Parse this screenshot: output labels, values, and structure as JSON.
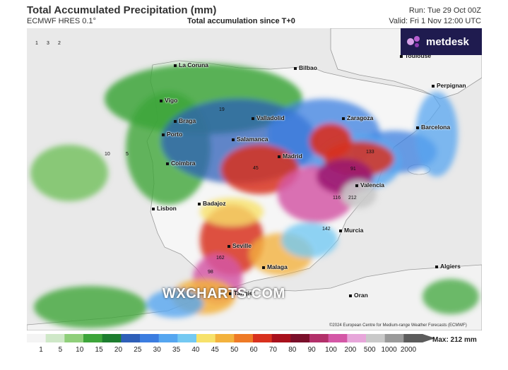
{
  "header": {
    "title": "Total Accumulated Precipitation (mm)",
    "model": "ECMWF HRES 0.1°",
    "subtitle": "Total accumulation since T+0",
    "run": "Run: Tue 29 Oct 00Z",
    "valid": "Valid: Fri 1 Nov 12:00 UTC"
  },
  "logo": {
    "text": "metdesk",
    "bg_color": "#1f1b4f"
  },
  "cities": [
    "La Coruna",
    "Bilbao",
    "Toulouse",
    "Vigo",
    "Perpignan",
    "Braga",
    "Valladolid",
    "Zaragoza",
    "Porto",
    "Barcelona",
    "Salamanca",
    "Madrid",
    "Coimbra",
    "Valencia",
    "Lisbon",
    "Badajoz",
    "Murcia",
    "Seville",
    "Malaga",
    "Algiers",
    "Tangier",
    "Oran"
  ],
  "values": [
    "1",
    "3",
    "2",
    "5",
    "10",
    "19",
    "45",
    "91",
    "133",
    "142",
    "116",
    "162",
    "98",
    "212"
  ],
  "watermark": "WXCHARTS.COM",
  "credit": "©2024 European Centre for Medium-range Weather Forecasts (ECMWF)",
  "scale": {
    "ticks": [
      "1",
      "5",
      "10",
      "15",
      "20",
      "25",
      "30",
      "35",
      "40",
      "45",
      "50",
      "60",
      "70",
      "80",
      "90",
      "100",
      "200",
      "500",
      "1000",
      "2000"
    ],
    "max_label": "Max: 212 mm",
    "colors": [
      "#f4f4f4",
      "#cfe8c8",
      "#8fcf7a",
      "#3da53a",
      "#1d7d2f",
      "#2e5fb8",
      "#3b7de0",
      "#55a6f0",
      "#74c9f2",
      "#f7e26b",
      "#f3b23d",
      "#ee7a26",
      "#d8311e",
      "#a8101c",
      "#7a0f2a",
      "#b2306a",
      "#d457a6",
      "#e7a6da",
      "#c9c9c9",
      "#9a9a9a",
      "#5c5c5c"
    ]
  }
}
